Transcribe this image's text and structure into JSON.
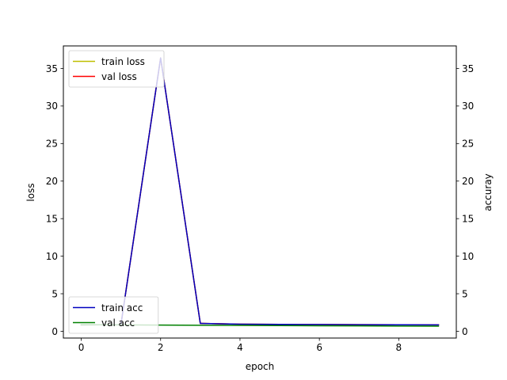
{
  "chart_data": {
    "type": "line",
    "title": "",
    "xlabel": "epoch",
    "ylabel_left": "loss",
    "ylabel_right": "accuray",
    "xlim": [
      -0.45,
      9.45
    ],
    "ylim_left": [
      -0.9,
      38.0
    ],
    "ylim_right": [
      -0.9,
      38.0
    ],
    "x_ticks": [
      0,
      2,
      4,
      6,
      8
    ],
    "y_ticks_left": [
      0,
      5,
      10,
      15,
      20,
      25,
      30,
      35
    ],
    "y_ticks_right": [
      0,
      5,
      10,
      15,
      20,
      25,
      30,
      35
    ],
    "grid": false,
    "x": [
      0,
      1,
      2,
      3,
      4,
      5,
      6,
      7,
      8,
      9
    ],
    "series": [
      {
        "name": "train loss",
        "axis": "left",
        "color": "#bfbf00",
        "values": [
          0.85,
          0.88,
          36.4,
          1.05,
          0.95,
          0.92,
          0.9,
          0.88,
          0.86,
          0.85
        ]
      },
      {
        "name": "val loss",
        "axis": "left",
        "color": "#ff0000",
        "values": [
          0.85,
          0.88,
          36.4,
          1.05,
          0.95,
          0.92,
          0.9,
          0.88,
          0.86,
          0.85
        ]
      },
      {
        "name": "train acc",
        "axis": "right",
        "color": "#0000bf",
        "values": [
          0.85,
          0.88,
          36.4,
          1.05,
          0.95,
          0.92,
          0.9,
          0.88,
          0.86,
          0.85
        ]
      },
      {
        "name": "val acc",
        "axis": "right",
        "color": "#008000",
        "values": [
          0.88,
          0.85,
          0.82,
          0.8,
          0.78,
          0.76,
          0.74,
          0.72,
          0.7,
          0.68
        ]
      }
    ],
    "legends": [
      {
        "placement": "upper-left",
        "entries": [
          "train loss",
          "val loss"
        ]
      },
      {
        "placement": "lower-left",
        "entries": [
          "train acc",
          "val acc"
        ]
      }
    ]
  }
}
